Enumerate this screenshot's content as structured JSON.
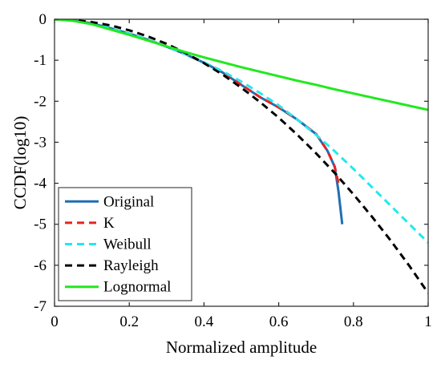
{
  "chart_data": {
    "type": "line",
    "title": "",
    "xlabel": "Normalized amplitude",
    "ylabel": "CCDF(log10)",
    "xlim": [
      0,
      1
    ],
    "ylim": [
      -7,
      0
    ],
    "x_ticks": [
      0,
      0.2,
      0.4,
      0.6,
      0.8,
      1
    ],
    "x_tick_labels": [
      "0",
      "0.2",
      "0.4",
      "0.6",
      "0.8",
      "1"
    ],
    "y_ticks": [
      0,
      -1,
      -2,
      -3,
      -4,
      -5,
      -6,
      -7
    ],
    "y_tick_labels": [
      "0",
      "-1",
      "-2",
      "-3",
      "-4",
      "-5",
      "-6",
      "-7"
    ],
    "grid": false,
    "legend_position": "bottom-left",
    "series": [
      {
        "name": "Original",
        "color": "#1f6fb5",
        "style": "solid",
        "x": [
          0,
          0.05,
          0.1,
          0.15,
          0.2,
          0.25,
          0.3,
          0.35,
          0.4,
          0.45,
          0.5,
          0.55,
          0.6,
          0.65,
          0.7,
          0.73,
          0.75,
          0.76,
          0.77
        ],
        "y": [
          0,
          -0.03,
          -0.1,
          -0.22,
          -0.35,
          -0.5,
          -0.67,
          -0.85,
          -1.06,
          -1.3,
          -1.6,
          -1.9,
          -2.15,
          -2.45,
          -2.8,
          -3.2,
          -3.6,
          -4.2,
          -5.0
        ]
      },
      {
        "name": "K",
        "color": "#e8221f",
        "style": "dashed",
        "x": [
          0,
          0.05,
          0.1,
          0.15,
          0.2,
          0.25,
          0.3,
          0.35,
          0.4,
          0.45,
          0.5,
          0.55,
          0.6,
          0.65,
          0.7,
          0.73,
          0.75,
          0.76
        ],
        "y": [
          0,
          -0.03,
          -0.1,
          -0.22,
          -0.35,
          -0.5,
          -0.67,
          -0.85,
          -1.06,
          -1.3,
          -1.6,
          -1.9,
          -2.15,
          -2.45,
          -2.8,
          -3.2,
          -3.6,
          -4.0
        ]
      },
      {
        "name": "Weibull",
        "color": "#22e8f0",
        "style": "dashed",
        "x": [
          0,
          0.05,
          0.1,
          0.15,
          0.2,
          0.25,
          0.3,
          0.35,
          0.4,
          0.45,
          0.5,
          0.55,
          0.6,
          0.65,
          0.7,
          0.75,
          0.8,
          0.85,
          0.9,
          0.95,
          1.0
        ],
        "y": [
          0,
          -0.03,
          -0.1,
          -0.22,
          -0.35,
          -0.5,
          -0.67,
          -0.85,
          -1.05,
          -1.27,
          -1.52,
          -1.8,
          -2.1,
          -2.45,
          -2.82,
          -3.22,
          -3.65,
          -4.1,
          -4.55,
          -5.0,
          -5.45
        ]
      },
      {
        "name": "Rayleigh",
        "color": "#000000",
        "style": "dashed",
        "x": [
          0,
          0.05,
          0.1,
          0.15,
          0.2,
          0.25,
          0.3,
          0.35,
          0.4,
          0.45,
          0.5,
          0.55,
          0.6,
          0.65,
          0.7,
          0.75,
          0.8,
          0.85,
          0.9,
          0.95,
          1.0
        ],
        "y": [
          0,
          -0.02,
          -0.07,
          -0.15,
          -0.27,
          -0.42,
          -0.6,
          -0.82,
          -1.07,
          -1.35,
          -1.67,
          -2.02,
          -2.4,
          -2.82,
          -3.27,
          -3.75,
          -4.27,
          -4.82,
          -5.4,
          -6.02,
          -6.68
        ]
      },
      {
        "name": "Lognormal",
        "color": "#22e81f",
        "style": "solid",
        "x": [
          0,
          0.05,
          0.1,
          0.15,
          0.2,
          0.25,
          0.3,
          0.35,
          0.4,
          0.45,
          0.5,
          0.55,
          0.6,
          0.65,
          0.7,
          0.75,
          0.8,
          0.85,
          0.9,
          0.95,
          1.0
        ],
        "y": [
          0,
          -0.04,
          -0.12,
          -0.25,
          -0.38,
          -0.52,
          -0.66,
          -0.8,
          -0.93,
          -1.05,
          -1.17,
          -1.28,
          -1.39,
          -1.5,
          -1.6,
          -1.71,
          -1.81,
          -1.91,
          -2.01,
          -2.11,
          -2.21
        ]
      }
    ]
  }
}
